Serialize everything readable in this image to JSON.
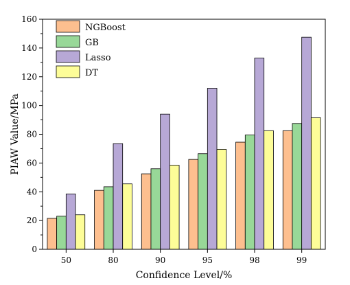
{
  "chart_data": {
    "type": "bar",
    "title": "",
    "xlabel": "Confidence Level/%",
    "ylabel": "PIAW Value/MPa",
    "categories": [
      "50",
      "80",
      "90",
      "95",
      "98",
      "99"
    ],
    "ylim": [
      0,
      160
    ],
    "yticks": [
      0,
      20,
      40,
      60,
      80,
      100,
      120,
      140,
      160
    ],
    "grid": false,
    "legend_position": "top-left",
    "series": [
      {
        "name": "NGBoost",
        "color": "#fdbf8f",
        "values": [
          21.5,
          41,
          52.5,
          62.5,
          74.5,
          82.5
        ]
      },
      {
        "name": "GB",
        "color": "#98d898",
        "values": [
          23,
          43.5,
          56,
          66.5,
          79.5,
          87.5
        ]
      },
      {
        "name": "Lasso",
        "color": "#b7a8d6",
        "values": [
          38.5,
          73.5,
          94,
          112,
          133,
          147.5
        ]
      },
      {
        "name": "DT",
        "color": "#fdfd98",
        "values": [
          24,
          45.5,
          58.5,
          69.5,
          82.5,
          91.5
        ]
      }
    ]
  }
}
